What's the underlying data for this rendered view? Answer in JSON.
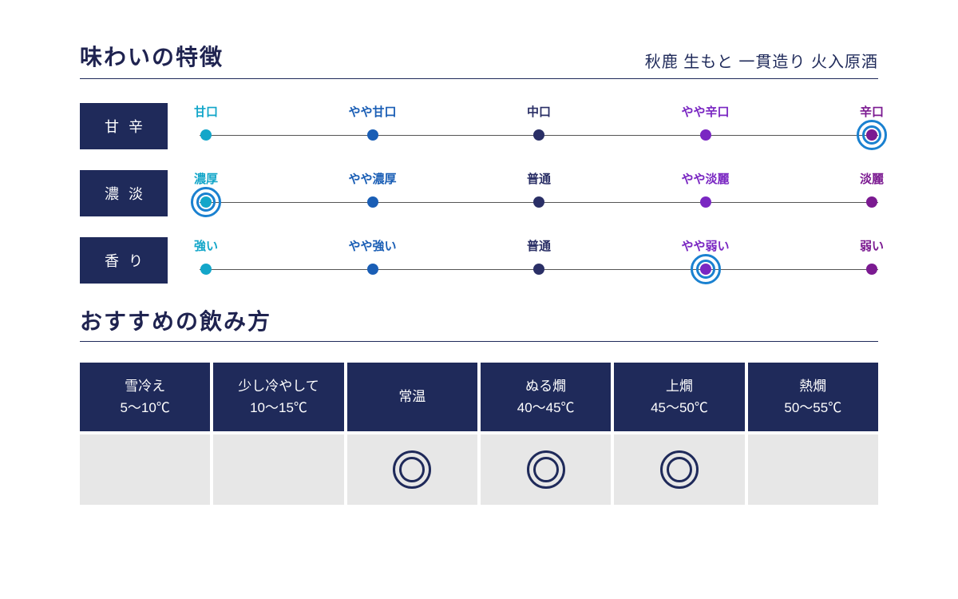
{
  "colors": {
    "navy": "#1f2a5a",
    "title": "#1f2350",
    "ring": "#1a81d0",
    "cell_bg": "#e7e7e7",
    "mark_stroke": "#1f2a5a"
  },
  "flavor": {
    "section_title": "味わいの特徴",
    "product_name": "秋鹿 生もと 一貫造り 火入原酒",
    "tick_colors": [
      "#13a6c9",
      "#1a5eb5",
      "#2a2f66",
      "#7a27c2",
      "#7b1a91"
    ],
    "rows": [
      {
        "label": "甘辛",
        "ticks": [
          "甘口",
          "やや甘口",
          "中口",
          "やや辛口",
          "辛口"
        ],
        "selected": 4
      },
      {
        "label": "濃淡",
        "ticks": [
          "濃厚",
          "やや濃厚",
          "普通",
          "やや淡麗",
          "淡麗"
        ],
        "selected": 0
      },
      {
        "label": "香り",
        "ticks": [
          "強い",
          "やや強い",
          "普通",
          "やや弱い",
          "弱い"
        ],
        "selected": 3
      }
    ]
  },
  "serving": {
    "section_title": "おすすめの飲み方",
    "columns": [
      {
        "name": "雪冷え",
        "temp": "5～10℃",
        "mark": false
      },
      {
        "name": "少し冷やして",
        "temp": "10～15℃",
        "mark": false
      },
      {
        "name": "常温",
        "temp": "",
        "mark": true
      },
      {
        "name": "ぬる燗",
        "temp": "40～45℃",
        "mark": true
      },
      {
        "name": "上燗",
        "temp": "45～50℃",
        "mark": true
      },
      {
        "name": "熱燗",
        "temp": "50～55℃",
        "mark": false
      }
    ]
  }
}
